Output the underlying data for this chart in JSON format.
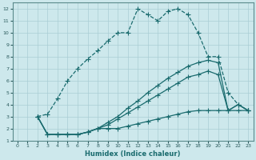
{
  "xlabel": "Humidex (Indice chaleur)",
  "xlim": [
    -0.5,
    23.5
  ],
  "ylim": [
    1,
    12.5
  ],
  "xticks": [
    0,
    1,
    2,
    3,
    4,
    5,
    6,
    7,
    8,
    9,
    10,
    11,
    12,
    13,
    14,
    15,
    16,
    17,
    18,
    19,
    20,
    21,
    22,
    23
  ],
  "yticks": [
    1,
    2,
    3,
    4,
    5,
    6,
    7,
    8,
    9,
    10,
    11,
    12
  ],
  "bg_color": "#cde8ec",
  "grid_color": "#aacdd4",
  "line_color": "#1a6b6e",
  "line1_x": [
    2,
    3,
    4,
    5,
    6,
    7,
    8,
    9,
    10,
    11,
    12,
    13,
    14,
    15,
    16,
    17,
    18,
    19,
    20,
    21,
    22,
    23
  ],
  "line1_y": [
    3,
    3.2,
    4.5,
    6,
    7,
    7.8,
    8.5,
    9.3,
    10,
    10,
    12,
    11.5,
    11,
    11.8,
    12,
    11.5,
    10,
    8,
    8,
    5,
    4,
    3.5
  ],
  "line2_x": [
    2,
    3,
    4,
    5,
    6,
    7,
    8,
    9,
    10,
    11,
    12,
    13,
    14,
    15,
    16,
    17,
    18,
    19,
    20,
    21,
    22,
    23
  ],
  "line2_y": [
    3,
    1.5,
    1.5,
    1.5,
    1.5,
    1.7,
    2,
    2,
    2,
    2.2,
    2.4,
    2.6,
    2.8,
    3.0,
    3.2,
    3.4,
    3.5,
    3.5,
    3.5,
    3.5,
    3.5,
    3.5
  ],
  "line3_x": [
    2,
    3,
    4,
    5,
    6,
    7,
    8,
    9,
    10,
    11,
    12,
    13,
    14,
    15,
    16,
    17,
    18,
    19,
    20,
    21,
    22,
    23
  ],
  "line3_y": [
    3,
    1.5,
    1.5,
    1.5,
    1.5,
    1.7,
    2.0,
    2.3,
    2.8,
    3.3,
    3.8,
    4.3,
    4.8,
    5.3,
    5.8,
    6.3,
    6.5,
    6.8,
    6.5,
    3.5,
    4,
    3.5
  ],
  "line4_x": [
    2,
    3,
    4,
    5,
    6,
    7,
    8,
    9,
    10,
    11,
    12,
    13,
    14,
    15,
    16,
    17,
    18,
    19,
    20,
    21,
    22,
    23
  ],
  "line4_y": [
    3,
    1.5,
    1.5,
    1.5,
    1.5,
    1.7,
    2.0,
    2.5,
    3.0,
    3.7,
    4.3,
    5.0,
    5.6,
    6.2,
    6.7,
    7.2,
    7.5,
    7.7,
    7.5,
    3.5,
    4,
    3.5
  ]
}
